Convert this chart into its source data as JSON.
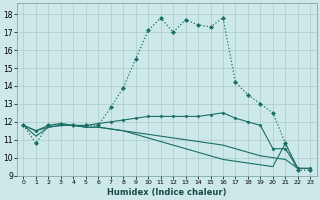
{
  "xlabel": "Humidex (Indice chaleur)",
  "background_color": "#cce8e8",
  "grid_color": "#aacccc",
  "line_color": "#1a6e66",
  "xlim": [
    -0.5,
    23.5
  ],
  "ylim": [
    9,
    18.6
  ],
  "yticks": [
    9,
    10,
    11,
    12,
    13,
    14,
    15,
    16,
    17,
    18
  ],
  "xticks": [
    0,
    1,
    2,
    3,
    4,
    5,
    6,
    7,
    8,
    9,
    10,
    11,
    12,
    13,
    14,
    15,
    16,
    17,
    18,
    19,
    20,
    21,
    22,
    23
  ],
  "series": [
    {
      "linestyle": ":",
      "linewidth": 0.9,
      "marker": "D",
      "markersize": 2.0,
      "x": [
        0,
        1,
        2,
        3,
        4,
        5,
        6,
        7,
        8,
        9,
        10,
        11,
        12,
        13,
        14,
        15,
        16,
        17,
        18,
        19,
        20,
        21,
        22,
        23
      ],
      "y": [
        11.8,
        10.8,
        11.8,
        11.9,
        11.8,
        11.8,
        11.8,
        12.8,
        13.9,
        15.5,
        17.1,
        17.8,
        17.0,
        17.7,
        17.4,
        17.3,
        17.8,
        14.2,
        13.5,
        13.0,
        12.5,
        10.8,
        9.3,
        9.3
      ]
    },
    {
      "linestyle": "-",
      "linewidth": 0.8,
      "marker": "D",
      "markersize": 1.5,
      "x": [
        0,
        1,
        2,
        3,
        4,
        5,
        6,
        7,
        8,
        9,
        10,
        11,
        12,
        13,
        14,
        15,
        16,
        17,
        18,
        19,
        20,
        21,
        22,
        23
      ],
      "y": [
        11.8,
        11.5,
        11.8,
        11.9,
        11.8,
        11.8,
        11.9,
        12.0,
        12.1,
        12.2,
        12.3,
        12.3,
        12.3,
        12.3,
        12.3,
        12.4,
        12.5,
        12.2,
        12.0,
        11.8,
        10.5,
        10.5,
        9.4,
        9.4
      ]
    },
    {
      "linestyle": "-",
      "linewidth": 0.8,
      "marker": null,
      "markersize": 0,
      "x": [
        0,
        1,
        2,
        3,
        4,
        5,
        6,
        7,
        8,
        9,
        10,
        11,
        12,
        13,
        14,
        15,
        16,
        17,
        18,
        19,
        20,
        21,
        22,
        23
      ],
      "y": [
        11.8,
        11.5,
        11.7,
        11.8,
        11.8,
        11.7,
        11.7,
        11.6,
        11.5,
        11.4,
        11.3,
        11.2,
        11.1,
        11.0,
        10.9,
        10.8,
        10.7,
        10.5,
        10.3,
        10.1,
        10.0,
        9.9,
        9.4,
        9.4
      ]
    },
    {
      "linestyle": "-",
      "linewidth": 0.8,
      "marker": null,
      "markersize": 0,
      "x": [
        0,
        1,
        2,
        3,
        4,
        5,
        6,
        7,
        8,
        9,
        10,
        11,
        12,
        13,
        14,
        15,
        16,
        17,
        18,
        19,
        20,
        21,
        22,
        23
      ],
      "y": [
        11.8,
        11.2,
        11.7,
        11.8,
        11.8,
        11.7,
        11.7,
        11.6,
        11.5,
        11.3,
        11.1,
        10.9,
        10.7,
        10.5,
        10.3,
        10.1,
        9.9,
        9.8,
        9.7,
        9.6,
        9.5,
        10.8,
        9.4,
        9.4
      ]
    }
  ]
}
